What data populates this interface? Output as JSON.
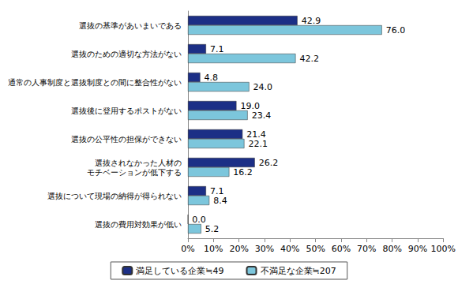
{
  "chart_data": {
    "type": "bar",
    "orientation": "horizontal",
    "categories": [
      "選抜の基準があいまいである",
      "選抜のための適切な方法がない",
      "通常の人事制度と選抜制度との間に整合性がない",
      "選抜後に登用するポストがない",
      "選抜の公平性の担保ができない",
      "選抜されなかった人材の\nモチベーションが低下する",
      "選抜について現場の納得が得られない",
      "選抜の費用対効果が低い"
    ],
    "series": [
      {
        "name": "満足している企業≒49",
        "color": "#1c2f86",
        "values": [
          42.9,
          7.1,
          4.8,
          19.0,
          21.4,
          26.2,
          7.1,
          0.0
        ],
        "value_labels": [
          "42.9",
          "7.1",
          "4.8",
          "19.0",
          "21.4",
          "26.2",
          "7.1",
          "0.0"
        ]
      },
      {
        "name": "不満足な企業≒207",
        "color": "#7cc6dc",
        "values": [
          76.0,
          42.2,
          24.0,
          23.4,
          22.1,
          16.2,
          8.4,
          5.2
        ],
        "value_labels": [
          "76.0",
          "42.2",
          "24.0",
          "23.4",
          "22.1",
          "16.2",
          "8.4",
          "5.2"
        ]
      }
    ],
    "xlim": [
      0,
      100
    ],
    "xticks": [
      {
        "value": 0,
        "label": "0%"
      },
      {
        "value": 10,
        "label": "10%"
      },
      {
        "value": 20,
        "label": "20%"
      },
      {
        "value": 30,
        "label": "30%"
      },
      {
        "value": 40,
        "label": "40%"
      },
      {
        "value": 50,
        "label": "50%"
      },
      {
        "value": 60,
        "label": "60%"
      },
      {
        "value": 70,
        "label": "70%"
      },
      {
        "value": 80,
        "label": "80%"
      },
      {
        "value": 90,
        "label": "90%"
      },
      {
        "value": 100,
        "label": "100%"
      }
    ],
    "grid": false,
    "legend": "bottom",
    "data_labels": true
  }
}
